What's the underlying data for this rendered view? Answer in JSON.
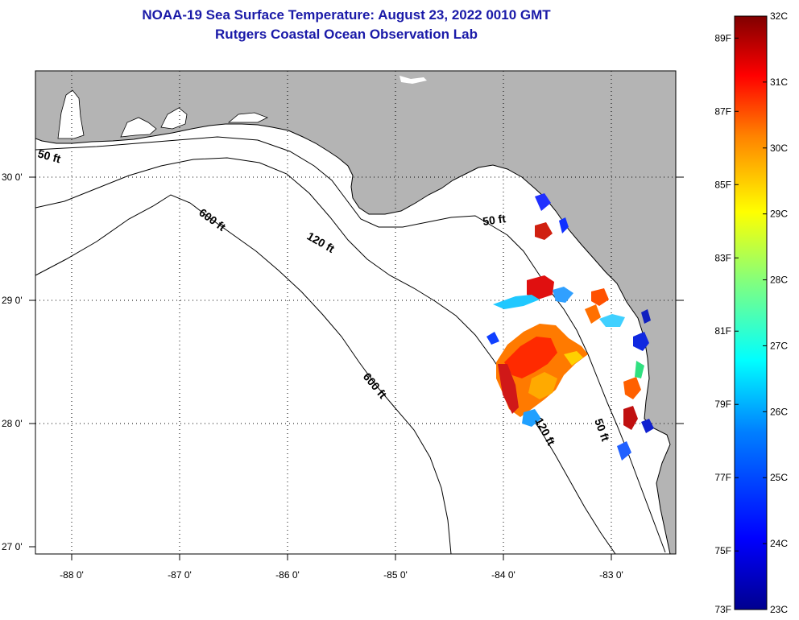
{
  "title": {
    "line1": "NOAA-19 Sea Surface Temperature:  August 23, 2022 0010 GMT",
    "line2": "Rutgers Coastal Ocean Observation Lab"
  },
  "axes": {
    "lat_labels": [
      "30 0'",
      "29 0'",
      "28 0'",
      "27 0'"
    ],
    "lon_labels": [
      "-88 0'",
      "-87 0'",
      "-86 0'",
      "-85 0'",
      "-84 0'",
      "-83 0'"
    ]
  },
  "contours": {
    "ft50_west": "50 ft",
    "ft50_north": "50 ft",
    "ft50_south": "50 ft",
    "ft120_north": "120 ft",
    "ft120_south": "120 ft",
    "ft600_north": "600 ft",
    "ft600_south": "600 ft"
  },
  "colorbar": {
    "fahrenheit": [
      "89F",
      "87F",
      "85F",
      "83F",
      "81F",
      "79F",
      "77F",
      "75F",
      "73F"
    ],
    "celsius": [
      "32C",
      "31C",
      "30C",
      "29C",
      "28C",
      "27C",
      "26C",
      "25C",
      "24C",
      "23C"
    ],
    "colors": [
      "#00008f",
      "#0000ff",
      "#0080ff",
      "#00ffff",
      "#80ff80",
      "#ffff00",
      "#ff8000",
      "#ff0000",
      "#800000"
    ]
  },
  "colors": {
    "land": "#b4b4b4",
    "water": "#ffffff",
    "title": "#1a1aa8"
  }
}
